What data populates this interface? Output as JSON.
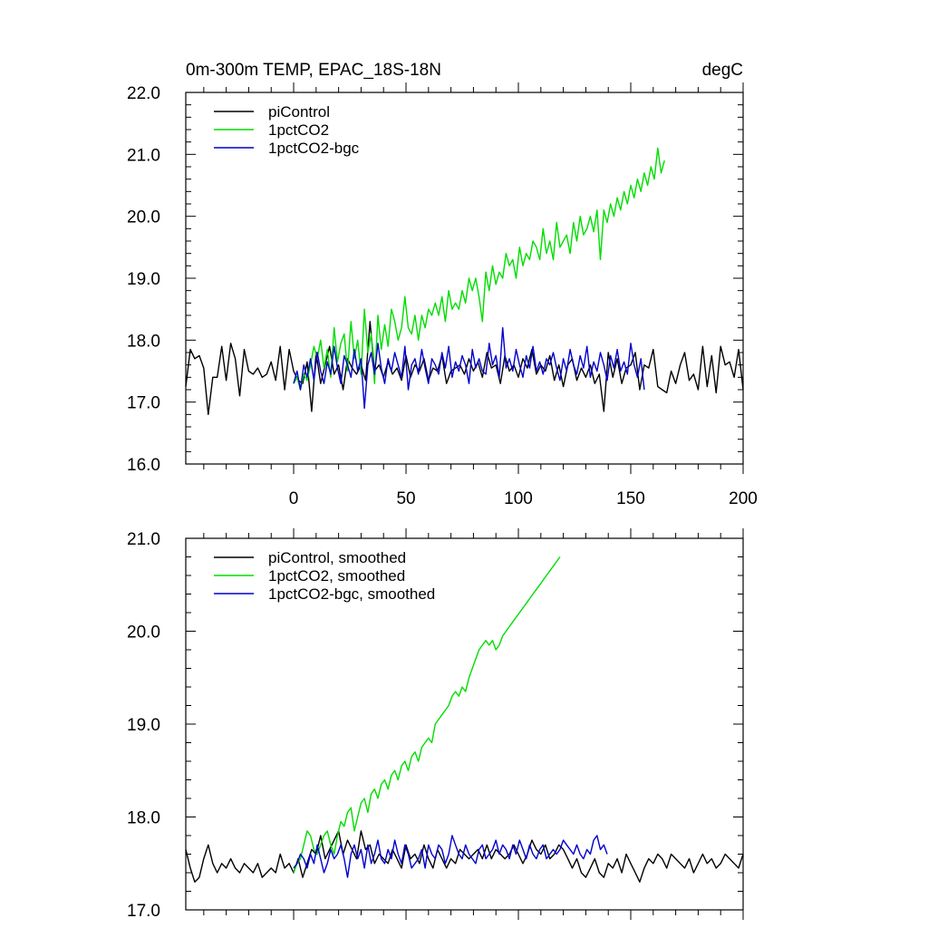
{
  "chart_data": [
    {
      "type": "line",
      "title": "0m-300m TEMP, EPAC_18S-18N",
      "units": "degC",
      "xlim": [
        -48,
        200
      ],
      "ylim": [
        16.0,
        22.0
      ],
      "xticks": [
        0,
        50,
        100,
        150,
        200
      ],
      "xtick_labels": [
        "0",
        "50",
        "100",
        "150",
        "200"
      ],
      "yticks": [
        16.0,
        17.0,
        18.0,
        19.0,
        20.0,
        21.0,
        22.0
      ],
      "ytick_labels": [
        "16.0",
        "17.0",
        "18.0",
        "19.0",
        "20.0",
        "21.0",
        "22.0"
      ],
      "legend_position": "top-left",
      "series": [
        {
          "name": "piControl",
          "color": "#000000",
          "x_start": -48,
          "x_step": 2,
          "values": [
            17.25,
            17.85,
            17.7,
            17.75,
            17.55,
            16.8,
            17.4,
            17.4,
            17.9,
            17.35,
            17.95,
            17.7,
            17.1,
            17.85,
            17.5,
            17.45,
            17.55,
            17.4,
            17.45,
            17.65,
            17.35,
            17.9,
            17.2,
            17.85,
            17.5,
            17.35,
            17.3,
            17.65,
            16.85,
            17.8,
            17.3,
            17.6,
            17.9,
            17.45,
            17.6,
            17.2,
            17.7,
            17.55,
            17.45,
            17.6,
            17.35,
            18.3,
            17.5,
            17.6,
            17.4,
            17.65,
            17.45,
            17.55,
            17.35,
            17.75,
            17.4,
            17.6,
            17.5,
            17.7,
            17.35,
            17.55,
            17.5,
            17.75,
            17.3,
            17.5,
            17.55,
            17.6,
            17.45,
            17.7,
            17.5,
            17.65,
            17.4,
            17.8,
            17.55,
            17.6,
            17.3,
            17.75,
            17.5,
            17.6,
            17.4,
            17.7,
            17.55,
            17.85,
            17.45,
            17.6,
            17.5,
            17.75,
            17.35,
            17.6,
            17.25,
            17.6,
            17.7,
            17.35,
            17.55,
            17.4,
            17.6,
            17.3,
            17.45,
            16.85,
            17.8,
            17.4,
            17.7,
            17.3,
            17.55,
            17.6,
            17.8,
            17.2,
            17.6,
            17.55,
            17.85,
            17.25,
            17.2,
            17.15,
            17.5,
            17.3,
            17.6,
            17.8,
            17.35,
            17.45,
            17.2,
            17.9,
            17.25,
            17.75,
            17.15,
            17.9,
            17.6,
            17.65,
            17.4,
            17.85,
            17.2
          ]
        },
        {
          "name": "1pctCO2",
          "color": "#00dd00",
          "x_start": 0,
          "x_step": 1.5,
          "values": [
            17.3,
            17.4,
            17.2,
            17.45,
            17.35,
            17.6,
            17.9,
            17.7,
            18.0,
            17.55,
            17.85,
            17.4,
            18.2,
            17.65,
            17.95,
            18.1,
            17.5,
            18.3,
            17.7,
            18.0,
            17.45,
            18.5,
            17.8,
            18.1,
            17.3,
            18.4,
            17.85,
            18.25,
            17.9,
            18.5,
            18.3,
            18.0,
            18.2,
            18.7,
            18.2,
            18.1,
            18.4,
            18.0,
            18.4,
            18.2,
            18.5,
            18.4,
            18.6,
            18.4,
            18.7,
            18.3,
            18.8,
            18.5,
            18.6,
            18.5,
            18.8,
            18.6,
            19.0,
            18.8,
            19.0,
            18.7,
            18.3,
            19.1,
            18.8,
            19.2,
            18.9,
            19.1,
            19.0,
            19.4,
            19.2,
            19.3,
            19.0,
            19.5,
            19.2,
            19.4,
            19.3,
            19.6,
            19.5,
            19.3,
            19.8,
            19.4,
            19.6,
            19.3,
            19.9,
            19.5,
            19.6,
            19.7,
            19.4,
            19.9,
            19.6,
            20.0,
            19.7,
            19.8,
            20.0,
            19.75,
            20.1,
            19.3,
            20.1,
            19.9,
            20.2,
            20.0,
            20.3,
            20.1,
            20.4,
            20.2,
            20.5,
            20.3,
            20.6,
            20.4,
            20.7,
            20.5,
            20.8,
            20.6,
            21.1,
            20.7,
            20.9
          ]
        },
        {
          "name": "1pctCO2-bgc",
          "color": "#0000cc",
          "x_start": 0,
          "x_step": 1.5,
          "values": [
            17.3,
            17.5,
            17.2,
            17.6,
            17.4,
            17.7,
            17.35,
            17.8,
            17.5,
            17.3,
            17.65,
            17.45,
            17.9,
            17.55,
            17.3,
            17.75,
            17.6,
            17.4,
            17.85,
            17.5,
            17.7,
            16.9,
            17.6,
            17.8,
            17.45,
            17.95,
            17.55,
            17.3,
            17.7,
            17.5,
            17.8,
            17.6,
            17.4,
            17.9,
            17.2,
            17.6,
            17.7,
            17.45,
            17.85,
            17.55,
            17.3,
            17.7,
            17.6,
            17.45,
            17.8,
            17.55,
            17.9,
            17.4,
            17.65,
            17.5,
            17.75,
            17.6,
            17.3,
            17.85,
            17.55,
            17.7,
            17.5,
            17.45,
            17.95,
            17.6,
            17.75,
            17.4,
            18.2,
            17.55,
            17.7,
            17.5,
            17.85,
            17.6,
            17.4,
            17.75,
            17.55,
            17.9,
            17.5,
            17.65,
            17.45,
            17.7,
            17.6,
            17.8,
            17.55,
            17.35,
            17.7,
            17.5,
            17.85,
            17.6,
            17.45,
            17.75,
            17.55,
            17.9,
            17.4,
            17.65,
            17.5,
            17.8,
            17.6,
            17.35,
            17.75,
            17.55,
            17.85,
            17.5,
            17.65,
            17.45,
            17.95,
            17.6,
            17.4,
            17.7,
            17.2
          ]
        }
      ]
    },
    {
      "type": "line",
      "xlim": [
        -48,
        200
      ],
      "ylim": [
        17.0,
        21.0
      ],
      "xticks": [
        0,
        50,
        100,
        150,
        200
      ],
      "yticks": [
        17.0,
        18.0,
        19.0,
        20.0,
        21.0
      ],
      "ytick_labels": [
        "17.0",
        "18.0",
        "19.0",
        "20.0",
        "21.0"
      ],
      "legend_position": "top-left",
      "series": [
        {
          "name": "piControl, smoothed",
          "color": "#000000",
          "x_start": -48,
          "x_step": 2,
          "values": [
            17.65,
            17.45,
            17.3,
            17.35,
            17.55,
            17.7,
            17.5,
            17.4,
            17.5,
            17.45,
            17.55,
            17.45,
            17.4,
            17.5,
            17.45,
            17.4,
            17.5,
            17.35,
            17.4,
            17.45,
            17.4,
            17.6,
            17.45,
            17.5,
            17.4,
            17.55,
            17.35,
            17.5,
            17.65,
            17.6,
            17.8,
            17.55,
            17.65,
            17.75,
            17.85,
            17.6,
            17.75,
            17.65,
            17.55,
            17.85,
            17.65,
            17.7,
            17.5,
            17.6,
            17.55,
            17.5,
            17.65,
            17.55,
            17.45,
            17.7,
            17.55,
            17.6,
            17.5,
            17.7,
            17.55,
            17.45,
            17.65,
            17.55,
            17.45,
            17.55,
            17.5,
            17.65,
            17.6,
            17.55,
            17.6,
            17.65,
            17.55,
            17.7,
            17.55,
            17.65,
            17.6,
            17.55,
            17.6,
            17.7,
            17.6,
            17.5,
            17.6,
            17.75,
            17.65,
            17.6,
            17.7,
            17.55,
            17.6,
            17.7,
            17.65,
            17.55,
            17.45,
            17.55,
            17.4,
            17.35,
            17.45,
            17.55,
            17.4,
            17.35,
            17.5,
            17.45,
            17.55,
            17.4,
            17.6,
            17.5,
            17.4,
            17.3,
            17.45,
            17.55,
            17.5,
            17.6,
            17.55,
            17.45,
            17.6,
            17.55,
            17.5,
            17.45,
            17.55,
            17.4,
            17.5,
            17.6,
            17.5,
            17.55,
            17.45,
            17.5,
            17.6,
            17.55,
            17.5,
            17.45,
            17.6
          ]
        },
        {
          "name": "1pctCO2, smoothed",
          "color": "#00dd00",
          "x_start": 0,
          "x_step": 1.5,
          "values": [
            17.4,
            17.5,
            17.55,
            17.7,
            17.85,
            17.8,
            17.65,
            17.6,
            17.7,
            17.8,
            17.85,
            17.7,
            17.6,
            17.8,
            17.95,
            17.9,
            18.05,
            18.1,
            17.85,
            18.0,
            18.15,
            18.2,
            18.05,
            18.25,
            18.3,
            18.2,
            18.35,
            18.4,
            18.3,
            18.45,
            18.5,
            18.4,
            18.55,
            18.6,
            18.5,
            18.65,
            18.7,
            18.6,
            18.75,
            18.8,
            18.85,
            18.8,
            19.0,
            19.05,
            19.1,
            19.15,
            19.2,
            19.3,
            19.35,
            19.3,
            19.4,
            19.35,
            19.5,
            19.6,
            19.7,
            19.8,
            19.85,
            19.9,
            19.85,
            19.9,
            19.8,
            19.85,
            19.95,
            20.0,
            20.05,
            20.1,
            20.15,
            20.2,
            20.25,
            20.3,
            20.35,
            20.4,
            20.45,
            20.5,
            20.55,
            20.6,
            20.65,
            20.7,
            20.75,
            20.8
          ]
        },
        {
          "name": "1pctCO2-bgc, smoothed",
          "color": "#0000cc",
          "x_start": 0,
          "x_step": 1.5,
          "values": [
            17.45,
            17.5,
            17.6,
            17.55,
            17.45,
            17.6,
            17.5,
            17.7,
            17.55,
            17.4,
            17.5,
            17.65,
            17.55,
            17.6,
            17.7,
            17.55,
            17.35,
            17.6,
            17.7,
            17.55,
            17.65,
            17.45,
            17.7,
            17.5,
            17.6,
            17.75,
            17.55,
            17.5,
            17.65,
            17.55,
            17.75,
            17.6,
            17.5,
            17.7,
            17.6,
            17.45,
            17.5,
            17.55,
            17.65,
            17.45,
            17.7,
            17.6,
            17.55,
            17.7,
            17.65,
            17.5,
            17.6,
            17.8,
            17.7,
            17.6,
            17.55,
            17.7,
            17.6,
            17.55,
            17.5,
            17.65,
            17.7,
            17.55,
            17.6,
            17.65,
            17.75,
            17.6,
            17.7,
            17.65,
            17.55,
            17.7,
            17.6,
            17.75,
            17.65,
            17.55,
            17.7,
            17.6,
            17.55,
            17.65,
            17.7,
            17.55,
            17.6,
            17.65,
            17.6,
            17.65,
            17.75,
            17.7,
            17.65,
            17.6,
            17.7,
            17.6,
            17.55,
            17.65,
            17.6,
            17.75,
            17.8,
            17.65,
            17.7,
            17.6
          ]
        }
      ]
    }
  ]
}
